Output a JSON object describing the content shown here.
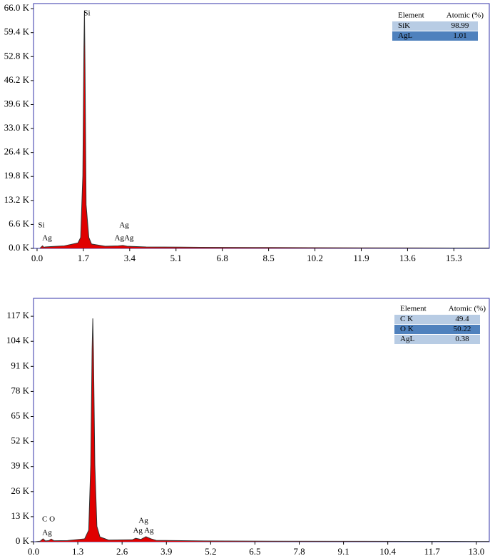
{
  "chart_data": [
    {
      "type": "area",
      "x": [
        0.1,
        0.2,
        0.25,
        0.3,
        0.5,
        1.0,
        1.5,
        1.6,
        1.68,
        1.72,
        1.74,
        1.76,
        1.8,
        1.9,
        2.0,
        2.5,
        2.98,
        3.15,
        3.3,
        4,
        6,
        8,
        10,
        12,
        14,
        16,
        16.6
      ],
      "series": [
        {
          "color": "#e00000",
          "values": [
            0,
            700,
            300,
            400,
            500,
            700,
            1500,
            3000,
            20000,
            55000,
            65500,
            50000,
            12000,
            3000,
            1200,
            600,
            700,
            800,
            600,
            400,
            300,
            250,
            200,
            150,
            120,
            100,
            100
          ]
        }
      ],
      "xlim": [
        -0.13,
        16.6
      ],
      "ylim": [
        0,
        67400
      ],
      "xticks": [
        {
          "value": 0,
          "label": "0.0"
        },
        1.7,
        3.4,
        5.1,
        6.8,
        8.5,
        10.2,
        11.9,
        13.6,
        15.3
      ],
      "yticks": [
        {
          "value": 0,
          "label": "0.0 K"
        },
        {
          "value": 6600,
          "label": "6.6 K"
        },
        {
          "value": 13200,
          "label": "13.2 K"
        },
        {
          "value": 19800,
          "label": "19.8 K"
        },
        {
          "value": 26400,
          "label": "26.4 K"
        },
        {
          "value": 33000,
          "label": "33.0 K"
        },
        {
          "value": 39600,
          "label": "39.6 K"
        },
        {
          "value": 46200,
          "label": "46.2 K"
        },
        {
          "value": 52800,
          "label": "52.8 K"
        },
        {
          "value": 59400,
          "label": "59.4 K"
        },
        {
          "value": 66000,
          "label": "66.0 K"
        }
      ],
      "annotations": [
        "Si",
        "Si",
        "Ag",
        "Ag",
        "AgAg"
      ],
      "table": {
        "header": [
          "Element",
          "Atomic (%)"
        ],
        "rows": [
          [
            "SiK",
            "98.99"
          ],
          [
            "AgL",
            "1.01"
          ]
        ]
      }
    },
    {
      "type": "area",
      "x": [
        0.05,
        0.2,
        0.28,
        0.35,
        0.45,
        0.52,
        0.6,
        1.0,
        1.5,
        1.62,
        1.68,
        1.72,
        1.74,
        1.76,
        1.8,
        1.86,
        1.95,
        2.2,
        2.9,
        3.0,
        3.15,
        3.3,
        3.45,
        3.6,
        5,
        7,
        9,
        11,
        13,
        13.38
      ],
      "series": [
        {
          "color": "#e00000",
          "values": [
            0,
            300,
            1500,
            400,
            600,
            1400,
            500,
            600,
            1500,
            6000,
            40000,
            100000,
            115900,
            98000,
            40000,
            8000,
            2500,
            900,
            1000,
            1800,
            1200,
            2600,
            1500,
            700,
            400,
            300,
            250,
            200,
            150,
            150
          ]
        }
      ],
      "xlim": [
        0,
        13.38
      ],
      "ylim": [
        0,
        126300
      ],
      "xticks": [
        {
          "value": 0,
          "label": "0.0"
        },
        1.3,
        2.6,
        3.9,
        5.2,
        6.5,
        7.8,
        9.1,
        10.4,
        11.7,
        {
          "value": 13,
          "label": "13.0"
        }
      ],
      "yticks": [
        {
          "value": 0,
          "label": "0 K"
        },
        {
          "value": 13000,
          "label": "13 K"
        },
        {
          "value": 26000,
          "label": "26 K"
        },
        {
          "value": 39000,
          "label": "39 K"
        },
        {
          "value": 52000,
          "label": "52 K"
        },
        {
          "value": 65000,
          "label": "65 K"
        },
        {
          "value": 78000,
          "label": "78 K"
        },
        {
          "value": 91000,
          "label": "91 K"
        },
        {
          "value": 104000,
          "label": "104 K"
        },
        {
          "value": 117000,
          "label": "117 K"
        }
      ],
      "annotations": [
        "C O",
        "Ag",
        "Ag",
        "Ag Ag"
      ],
      "table": {
        "header": [
          "Element",
          "Atomic (%)"
        ],
        "rows": [
          [
            "C K",
            "49.4"
          ],
          [
            "O K",
            "50.22"
          ],
          [
            "AgL",
            "0.38"
          ]
        ]
      }
    }
  ]
}
